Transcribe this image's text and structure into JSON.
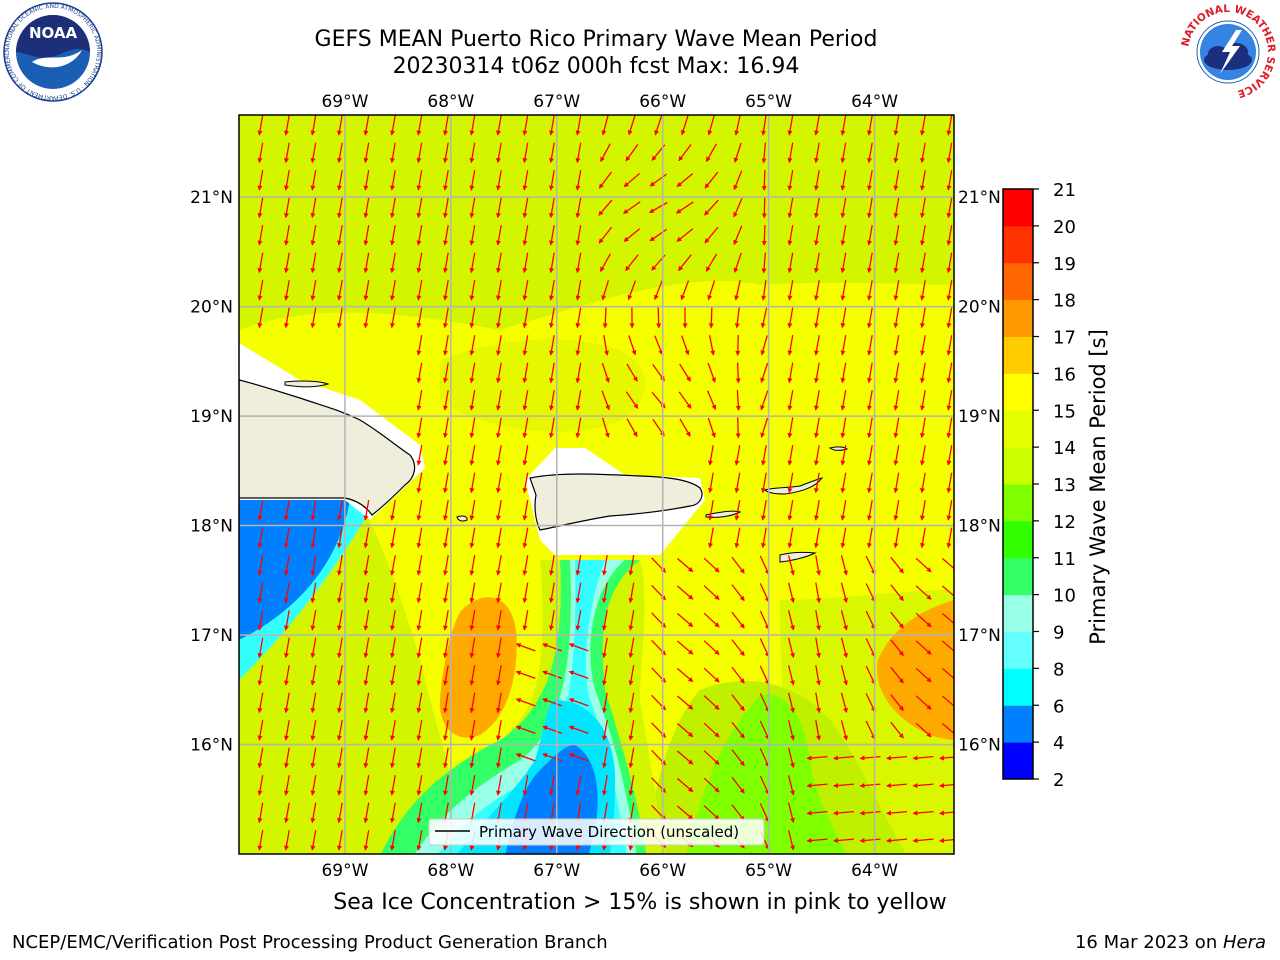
{
  "header": {
    "title_line1": "GEFS MEAN Puerto Rico Primary Wave Mean Period",
    "title_line2": "20230314 t06z 000h fcst   Max: 16.94",
    "left_logo": "NOAA",
    "left_logo_ring": "NATIONAL OCEANIC AND ATMOSPHERIC ADMINISTRATION · U.S. DEPARTMENT OF COMMERCE",
    "right_logo_ring": "NATIONAL WEATHER SERVICE"
  },
  "map": {
    "lon_labels": [
      "69°W",
      "68°W",
      "67°W",
      "66°W",
      "65°W",
      "64°W"
    ],
    "lat_labels": [
      "21°N",
      "20°N",
      "19°N",
      "18°N",
      "17°N",
      "16°N"
    ],
    "lon_values": [
      -69,
      -68,
      -67,
      -66,
      -65,
      -64
    ],
    "lat_values": [
      21,
      20,
      19,
      18,
      17,
      16
    ],
    "extent": {
      "lon": [
        -70,
        -63.25
      ],
      "lat": [
        15,
        21.75
      ]
    },
    "legend_label": "Primary Wave Direction (unscaled)",
    "arrow_color": "#ff0000",
    "land_color": "#efeddc"
  },
  "colorbar": {
    "label": "Primary Wave Mean Period [s]",
    "ticks": [
      "2",
      "4",
      "6",
      "8",
      "9",
      "10",
      "11",
      "12",
      "13",
      "14",
      "15",
      "16",
      "17",
      "18",
      "19",
      "20",
      "21"
    ],
    "colors": [
      "#0000ff",
      "#0080ff",
      "#00ffff",
      "#66ffff",
      "#99ffe6",
      "#33ff66",
      "#33ff00",
      "#80ff00",
      "#ccff00",
      "#e6ff00",
      "#ffff00",
      "#ffcc00",
      "#ff9900",
      "#ff6600",
      "#ff3300",
      "#ff0000"
    ]
  },
  "footer": {
    "note": "Sea Ice Concentration > 15% is shown in pink to yellow",
    "left": "NCEP/EMC/Verification Post Processing Product Generation Branch",
    "right_prefix": "16 Mar 2023 on ",
    "right_machine": "Hera"
  }
}
